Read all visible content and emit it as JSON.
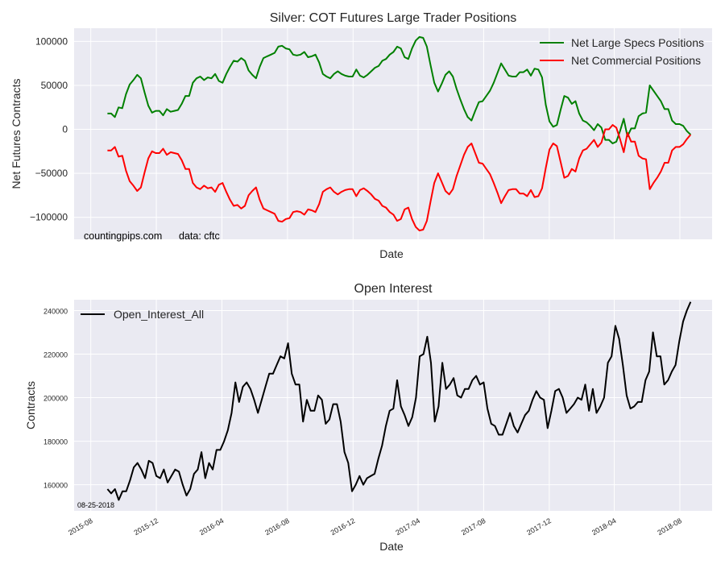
{
  "chart_data": [
    {
      "type": "line",
      "title": "Silver: COT Futures Large Trader Positions",
      "xlabel": "Date",
      "ylabel": "Net Futures Contracts",
      "ylim": [
        -125000,
        115000
      ],
      "yticks": [
        -100000,
        -50000,
        0,
        50000,
        100000
      ],
      "ytick_labels": [
        "−100000",
        "−50000",
        "0",
        "50000",
        "100000"
      ],
      "x_range": [
        "2015-07-01",
        "2018-09-30"
      ],
      "dates": {
        "start": "2015-09-01",
        "end": "2018-08-21",
        "freq": "weekly"
      },
      "grid": true,
      "legend_position": "top-right",
      "annotations": [
        "countingpips.com",
        "data: cftc"
      ],
      "series": [
        {
          "name": "Net Large Specs Positions",
          "color": "#008000",
          "unit": "thousand",
          "values": [
            18,
            18,
            14,
            25,
            24,
            40,
            51,
            56,
            62,
            58,
            42,
            27,
            19,
            21,
            21,
            16,
            23,
            20,
            21,
            22,
            29,
            38,
            38,
            53,
            58,
            60,
            56,
            59,
            58,
            63,
            55,
            53,
            63,
            71,
            78,
            77,
            81,
            78,
            67,
            62,
            58,
            71,
            81,
            83,
            85,
            87,
            94,
            95,
            92,
            91,
            85,
            84,
            85,
            88,
            82,
            83,
            85,
            76,
            63,
            60,
            58,
            63,
            66,
            63,
            61,
            60,
            60,
            68,
            61,
            59,
            62,
            66,
            70,
            72,
            78,
            80,
            85,
            88,
            94,
            92,
            82,
            80,
            92,
            101,
            105,
            104,
            94,
            73,
            53,
            43,
            52,
            62,
            66,
            60,
            46,
            34,
            23,
            14,
            10,
            21,
            31,
            32,
            38,
            44,
            53,
            64,
            75,
            68,
            61,
            60,
            60,
            65,
            65,
            68,
            61,
            69,
            68,
            59,
            28,
            9,
            3,
            5,
            22,
            38,
            36,
            29,
            32,
            18,
            10,
            8,
            4,
            -1,
            6,
            2,
            -12,
            -12,
            -16,
            -14,
            -2,
            12,
            -8,
            1,
            1,
            15,
            18,
            19,
            50,
            44,
            38,
            32,
            23,
            23,
            10,
            6,
            6,
            4,
            -2,
            -6
          ]
        },
        {
          "name": "Net Commercial Positions",
          "color": "#ff0000",
          "unit": "thousand",
          "values": [
            -24,
            -24,
            -20,
            -31,
            -30,
            -47,
            -59,
            -64,
            -70,
            -66,
            -49,
            -33,
            -25,
            -27,
            -27,
            -22,
            -29,
            -26,
            -27,
            -28,
            -35,
            -45,
            -45,
            -61,
            -66,
            -68,
            -64,
            -67,
            -66,
            -71,
            -63,
            -61,
            -71,
            -80,
            -87,
            -86,
            -90,
            -87,
            -75,
            -70,
            -66,
            -80,
            -90,
            -92,
            -94,
            -96,
            -104,
            -105,
            -102,
            -101,
            -94,
            -93,
            -94,
            -97,
            -91,
            -92,
            -94,
            -85,
            -71,
            -68,
            -66,
            -71,
            -74,
            -71,
            -69,
            -68,
            -68,
            -76,
            -69,
            -67,
            -70,
            -74,
            -79,
            -81,
            -87,
            -89,
            -94,
            -97,
            -104,
            -102,
            -91,
            -89,
            -102,
            -111,
            -115,
            -114,
            -104,
            -82,
            -61,
            -50,
            -60,
            -70,
            -74,
            -68,
            -53,
            -41,
            -29,
            -20,
            -16,
            -27,
            -38,
            -39,
            -45,
            -51,
            -61,
            -72,
            -84,
            -76,
            -69,
            -68,
            -68,
            -73,
            -73,
            -76,
            -69,
            -77,
            -76,
            -67,
            -44,
            -23,
            -16,
            -19,
            -37,
            -55,
            -53,
            -45,
            -48,
            -33,
            -24,
            -22,
            -17,
            -12,
            -20,
            -15,
            0,
            0,
            5,
            2,
            -11,
            -26,
            -4,
            -14,
            -14,
            -30,
            -33,
            -34,
            -68,
            -61,
            -55,
            -48,
            -38,
            -38,
            -24,
            -20,
            -20,
            -17,
            -11,
            -6
          ]
        }
      ]
    },
    {
      "type": "line",
      "title": "Open Interest",
      "xlabel": "Date",
      "ylabel": "Contracts",
      "ylim": [
        148000,
        245000
      ],
      "yticks": [
        160000,
        180000,
        200000,
        220000,
        240000
      ],
      "ytick_labels": [
        "160000",
        "180000",
        "200000",
        "220000",
        "240000"
      ],
      "xticks": [
        "2015-08",
        "2015-12",
        "2016-04",
        "2016-08",
        "2016-12",
        "2017-04",
        "2017-08",
        "2017-12",
        "2018-04",
        "2018-08"
      ],
      "x_range": [
        "2015-07-01",
        "2018-09-30"
      ],
      "dates": {
        "start": "2015-09-01",
        "end": "2018-08-21",
        "freq": "weekly"
      },
      "grid": true,
      "legend_position": "top-left",
      "annotations": [
        "08-25-2018"
      ],
      "series": [
        {
          "name": "Open_Interest_All",
          "color": "#000000",
          "unit": "thousand",
          "values": [
            158,
            156,
            158,
            153,
            157,
            157,
            162,
            168,
            170,
            167,
            163,
            171,
            170,
            164,
            163,
            167,
            161,
            164,
            167,
            166,
            160,
            155,
            158,
            165,
            167,
            175,
            163,
            170,
            167,
            176,
            176,
            180,
            185,
            193,
            207,
            198,
            205,
            207,
            204,
            199,
            193,
            199,
            205,
            211,
            211,
            215,
            219,
            218,
            225,
            211,
            206,
            206,
            189,
            199,
            194,
            194,
            201,
            199,
            188,
            190,
            197,
            197,
            189,
            175,
            170,
            157,
            160,
            164,
            160,
            163,
            164,
            165,
            172,
            178,
            187,
            194,
            195,
            208,
            196,
            192,
            187,
            191,
            200,
            219,
            220,
            228,
            216,
            189,
            196,
            216,
            204,
            206,
            209,
            201,
            200,
            204,
            204,
            208,
            210,
            206,
            207,
            195,
            188,
            187,
            183,
            183,
            188,
            193,
            187,
            184,
            188,
            192,
            194,
            199,
            203,
            200,
            199,
            186,
            194,
            203,
            204,
            200,
            193,
            195,
            197,
            200,
            199,
            206,
            194,
            204,
            193,
            196,
            200,
            216,
            219,
            233,
            227,
            215,
            201,
            195,
            196,
            198,
            198,
            208,
            212,
            230,
            219,
            219,
            206,
            208,
            212,
            215,
            226,
            235,
            240,
            244
          ]
        }
      ]
    }
  ]
}
